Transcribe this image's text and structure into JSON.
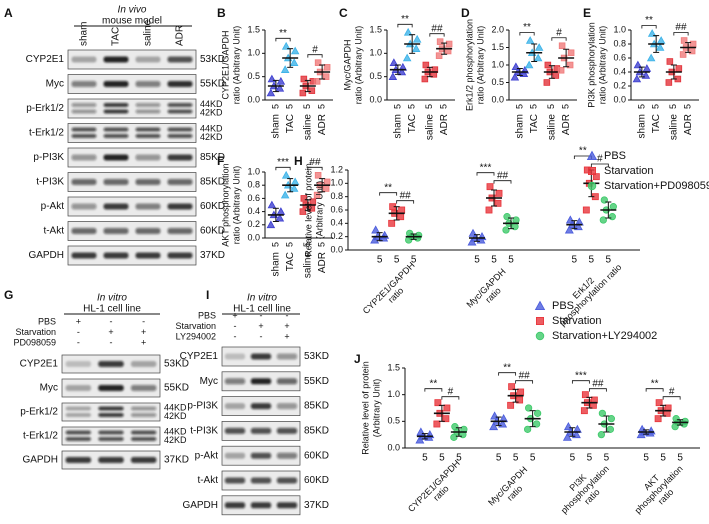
{
  "blots": [
    {
      "label": "A",
      "header": [
        "In vivo",
        "mouse model"
      ],
      "lanes": [
        "sham",
        "TAC",
        "saline",
        "ADR"
      ],
      "rows": [
        {
          "name": "CYP2E1",
          "kd": [
            "53KD"
          ]
        },
        {
          "name": "Myc",
          "kd": [
            "55KD"
          ]
        },
        {
          "name": "p-Erk1/2",
          "kd": [
            "44KD",
            "42KD"
          ]
        },
        {
          "name": "t-Erk1/2",
          "kd": [
            "44KD",
            "42KD"
          ]
        },
        {
          "name": "p-PI3K",
          "kd": [
            "85KD"
          ]
        },
        {
          "name": "t-PI3K",
          "kd": [
            "85KD"
          ]
        },
        {
          "name": "p-Akt",
          "kd": [
            "60KD"
          ]
        },
        {
          "name": "t-Akt",
          "kd": [
            "60KD"
          ]
        },
        {
          "name": "GAPDH",
          "kd": [
            "37KD"
          ]
        }
      ]
    },
    {
      "label": "G",
      "header": [
        "In vitro",
        "HL-1 cell line"
      ],
      "treatments": [
        {
          "name": "PBS",
          "signs": [
            "+",
            "-",
            "-"
          ]
        },
        {
          "name": "Starvation",
          "signs": [
            "-",
            "+",
            "+"
          ]
        },
        {
          "name": "PD098059",
          "signs": [
            "-",
            "-",
            "+"
          ]
        }
      ],
      "rows": [
        {
          "name": "CYP2E1",
          "kd": [
            "53KD"
          ]
        },
        {
          "name": "Myc",
          "kd": [
            "55KD"
          ]
        },
        {
          "name": "p-Erk1/2",
          "kd": [
            "44KD",
            "42KD"
          ]
        },
        {
          "name": "t-Erk1/2",
          "kd": [
            "44KD",
            "42KD"
          ]
        },
        {
          "name": "GAPDH",
          "kd": [
            "37KD"
          ]
        }
      ]
    },
    {
      "label": "I",
      "header": [
        "In vitro",
        "HL-1 cell line"
      ],
      "treatments": [
        {
          "name": "PBS",
          "signs": [
            "+",
            "-",
            "-"
          ]
        },
        {
          "name": "Starvation",
          "signs": [
            "-",
            "+",
            "+"
          ]
        },
        {
          "name": "LY294002",
          "signs": [
            "-",
            "-",
            "+"
          ]
        }
      ],
      "rows": [
        {
          "name": "CYP2E1",
          "kd": [
            "53KD"
          ]
        },
        {
          "name": "Myc",
          "kd": [
            "55KD"
          ]
        },
        {
          "name": "p-PI3K",
          "kd": [
            "85KD"
          ]
        },
        {
          "name": "t-PI3K",
          "kd": [
            "85KD"
          ]
        },
        {
          "name": "p-Akt",
          "kd": [
            "60KD"
          ]
        },
        {
          "name": "t-Akt",
          "kd": [
            "60KD"
          ]
        },
        {
          "name": "GAPDH",
          "kd": [
            "37KD"
          ]
        }
      ]
    }
  ],
  "chart_data": [
    {
      "type": "dot",
      "label": "B",
      "ylabel": [
        "CYP2E1/GAPDH",
        "ratio (Arbitrary Unit)"
      ],
      "categories": [
        "sham",
        "TAC",
        "saline",
        "ADR"
      ],
      "n_labels": [
        "5",
        "5",
        "5",
        "5"
      ],
      "colors": [
        "#3d3fd0",
        "#3cb3e8",
        "#e2323a",
        "#f07a7a"
      ],
      "markers": [
        "triangle",
        "triangle",
        "square",
        "square"
      ],
      "values": [
        0.3,
        0.9,
        0.3,
        0.6
      ],
      "errors": [
        0.12,
        0.2,
        0.12,
        0.15
      ],
      "points": [
        [
          0.15,
          0.25,
          0.3,
          0.4,
          0.45
        ],
        [
          0.65,
          0.8,
          0.9,
          1.05,
          1.15
        ],
        [
          0.15,
          0.2,
          0.3,
          0.4,
          0.45
        ],
        [
          0.4,
          0.5,
          0.6,
          0.7,
          0.8
        ]
      ],
      "ylim": [
        0,
        1.5
      ],
      "yticks": [
        {
          "value": 0,
          "label": "0.0"
        },
        0.5,
        {
          "value": 1,
          "label": "1.0"
        },
        1.5
      ],
      "significance": [
        "**",
        "#"
      ]
    },
    {
      "type": "dot",
      "label": "C",
      "ylabel": [
        "Myc/GAPDH",
        "ratio (Arbitrary Unit)"
      ],
      "categories": [
        "sham",
        "TAC",
        "saline",
        "ADR"
      ],
      "n_labels": [
        "5",
        "5",
        "5",
        "5"
      ],
      "colors": [
        "#3d3fd0",
        "#3cb3e8",
        "#e2323a",
        "#f07a7a"
      ],
      "markers": [
        "triangle",
        "triangle",
        "square",
        "square"
      ],
      "values": [
        0.65,
        1.2,
        0.6,
        1.1
      ],
      "errors": [
        0.1,
        0.2,
        0.1,
        0.12
      ],
      "points": [
        [
          0.5,
          0.6,
          0.65,
          0.7,
          0.8
        ],
        [
          0.9,
          1.1,
          1.2,
          1.3,
          1.45
        ],
        [
          0.45,
          0.55,
          0.6,
          0.65,
          0.75
        ],
        [
          0.95,
          1.05,
          1.1,
          1.2,
          1.25
        ]
      ],
      "ylim": [
        0,
        1.5
      ],
      "yticks": [
        {
          "value": 0,
          "label": "0.0"
        },
        0.5,
        {
          "value": 1,
          "label": "1.0"
        },
        1.5
      ],
      "significance": [
        "**",
        "##"
      ]
    },
    {
      "type": "dot",
      "label": "D",
      "ylabel": [
        "Erk1/2 phosphorylation",
        "ratio (Arbitrary Unit)"
      ],
      "categories": [
        "sham",
        "TAC",
        "saline",
        "ADR"
      ],
      "n_labels": [
        "5",
        "5",
        "5",
        "5"
      ],
      "colors": [
        "#3d3fd0",
        "#3cb3e8",
        "#e2323a",
        "#f07a7a"
      ],
      "markers": [
        "triangle",
        "triangle",
        "square",
        "square"
      ],
      "values": [
        0.8,
        1.35,
        0.8,
        1.2
      ],
      "errors": [
        0.1,
        0.25,
        0.18,
        0.25
      ],
      "points": [
        [
          0.65,
          0.75,
          0.8,
          0.85,
          0.95
        ],
        [
          1.0,
          1.2,
          1.35,
          1.5,
          1.7
        ],
        [
          0.5,
          0.7,
          0.8,
          0.9,
          1.0
        ],
        [
          0.85,
          1.0,
          1.2,
          1.35,
          1.55
        ]
      ],
      "ylim": [
        0,
        2
      ],
      "yticks": [
        {
          "value": 0,
          "label": "0.0"
        },
        0.5,
        {
          "value": 1,
          "label": "1.0"
        },
        1.5,
        {
          "value": 2,
          "label": "2.0"
        }
      ],
      "significance": [
        "**",
        "#"
      ]
    },
    {
      "type": "dot",
      "label": "E",
      "ylabel": [
        "PI3K phosphorylation",
        "ratio (Arbitrary Unit)"
      ],
      "categories": [
        "sham",
        "TAC",
        "saline",
        "ADR"
      ],
      "n_labels": [
        "5",
        "5",
        "5",
        "5"
      ],
      "colors": [
        "#3d3fd0",
        "#3cb3e8",
        "#e2323a",
        "#f07a7a"
      ],
      "markers": [
        "triangle",
        "triangle",
        "square",
        "square"
      ],
      "values": [
        0.4,
        0.8,
        0.4,
        0.75
      ],
      "errors": [
        0.07,
        0.12,
        0.1,
        0.07
      ],
      "points": [
        [
          0.3,
          0.35,
          0.4,
          0.45,
          0.5
        ],
        [
          0.6,
          0.75,
          0.8,
          0.85,
          0.95
        ],
        [
          0.25,
          0.3,
          0.4,
          0.45,
          0.55
        ],
        [
          0.65,
          0.7,
          0.75,
          0.8,
          0.85
        ]
      ],
      "ylim": [
        0,
        1
      ],
      "yticks": [
        {
          "value": 0,
          "label": "0.0"
        },
        0.2,
        0.4,
        0.6,
        0.8,
        {
          "value": 1,
          "label": "1.0"
        }
      ],
      "significance": [
        "**",
        "##"
      ]
    },
    {
      "type": "dot",
      "label": "F",
      "ylabel": [
        "AKT phosphorylation",
        "ratio (Arbitrary Unit)"
      ],
      "categories": [
        "sham",
        "TAC",
        "saline",
        "ADR"
      ],
      "n_labels": [
        "5",
        "5",
        "5",
        "5"
      ],
      "colors": [
        "#3d3fd0",
        "#3cb3e8",
        "#e2323a",
        "#f07a7a"
      ],
      "markers": [
        "triangle",
        "triangle",
        "square",
        "square"
      ],
      "values": [
        0.35,
        0.8,
        0.5,
        0.8
      ],
      "errors": [
        0.1,
        0.1,
        0.08,
        0.1
      ],
      "points": [
        [
          0.2,
          0.3,
          0.35,
          0.4,
          0.5
        ],
        [
          0.65,
          0.75,
          0.8,
          0.85,
          0.95
        ],
        [
          0.4,
          0.45,
          0.5,
          0.55,
          0.6
        ],
        [
          0.65,
          0.75,
          0.8,
          0.85,
          0.95
        ]
      ],
      "ylim": [
        0,
        1
      ],
      "yticks": [
        {
          "value": 0,
          "label": "0.0"
        },
        0.2,
        0.4,
        0.6,
        0.8,
        {
          "value": 1,
          "label": "1.0"
        }
      ],
      "significance": [
        "***",
        "##"
      ]
    },
    {
      "type": "grouped_dot",
      "label": "H",
      "ylabel": [
        "Relative level of protein",
        "(Arbitrary Unit)"
      ],
      "categories": [
        [
          "CYP2E1/GAPDH",
          "ratio"
        ],
        [
          "Myc/GAPDH",
          "ratio"
        ],
        [
          "Erk1/2",
          "phosphorylation ratio"
        ]
      ],
      "n_labels": [
        [
          "5",
          "5",
          "5"
        ],
        [
          "5",
          "5",
          "5"
        ],
        [
          "5",
          "5",
          "5"
        ]
      ],
      "series": [
        {
          "name": "PBS",
          "color": "#4a5bdc",
          "marker": "triangle",
          "values": [
            0.2,
            0.18,
            0.38
          ],
          "errors": [
            0.06,
            0.05,
            0.06
          ],
          "points": [
            [
              0.15,
              0.18,
              0.2,
              0.22,
              0.3
            ],
            [
              0.12,
              0.15,
              0.18,
              0.2,
              0.25
            ],
            [
              0.3,
              0.35,
              0.38,
              0.42,
              0.45
            ]
          ]
        },
        {
          "name": "Starvation",
          "color": "#e8353b",
          "marker": "square",
          "values": [
            0.55,
            0.78,
            1.0
          ],
          "errors": [
            0.1,
            0.12,
            0.2
          ],
          "points": [
            [
              0.4,
              0.5,
              0.55,
              0.6,
              0.65
            ],
            [
              0.6,
              0.7,
              0.78,
              0.85,
              0.95
            ],
            [
              0.6,
              0.8,
              1.0,
              1.1,
              1.2
            ]
          ]
        },
        {
          "name": "Starvation+PD098059",
          "color": "#3ec96a",
          "marker": "circle",
          "values": [
            0.2,
            0.4,
            0.6
          ],
          "errors": [
            0.04,
            0.08,
            0.12
          ],
          "points": [
            [
              0.15,
              0.18,
              0.2,
              0.22,
              0.25
            ],
            [
              0.3,
              0.35,
              0.4,
              0.45,
              0.5
            ],
            [
              0.45,
              0.5,
              0.6,
              0.65,
              0.75
            ]
          ]
        }
      ],
      "ylim": [
        0,
        1.2
      ],
      "yticks": [
        {
          "value": 0,
          "label": "0.0"
        },
        0.2,
        0.4,
        0.6,
        0.8,
        {
          "value": 1,
          "label": "1.0"
        },
        1.2
      ],
      "significance": [
        [
          "**",
          "##"
        ],
        [
          "***",
          "##"
        ],
        [
          "**",
          "#"
        ]
      ],
      "legend": "upper right"
    },
    {
      "type": "grouped_dot",
      "label": "J",
      "ylabel": [
        "Relative level of protein",
        "(Arbitrary Unit)"
      ],
      "categories": [
        [
          "CYP2E1/GAPDH",
          "ratio"
        ],
        [
          "Myc/GAPDH",
          "ratio"
        ],
        [
          "PI3K",
          "phosphorylation",
          "ratio"
        ],
        [
          "AKT",
          "phosphorylation",
          "ratio"
        ]
      ],
      "n_labels": [
        [
          "5",
          "5",
          "5"
        ],
        [
          "5",
          "5",
          "5"
        ],
        [
          "5",
          "5",
          "5"
        ],
        [
          "5",
          "5",
          "5"
        ]
      ],
      "series": [
        {
          "name": "PBS",
          "color": "#4a5bdc",
          "marker": "triangle",
          "values": [
            0.22,
            0.5,
            0.3,
            0.3
          ],
          "errors": [
            0.05,
            0.08,
            0.08,
            0.04
          ],
          "points": [
            [
              0.15,
              0.2,
              0.22,
              0.25,
              0.3
            ],
            [
              0.4,
              0.45,
              0.5,
              0.55,
              0.6
            ],
            [
              0.2,
              0.25,
              0.3,
              0.35,
              0.4
            ],
            [
              0.25,
              0.28,
              0.3,
              0.32,
              0.35
            ]
          ]
        },
        {
          "name": "Starvation",
          "color": "#e8353b",
          "marker": "square",
          "values": [
            0.65,
            0.98,
            0.85,
            0.7
          ],
          "errors": [
            0.15,
            0.12,
            0.1,
            0.1
          ],
          "points": [
            [
              0.45,
              0.55,
              0.65,
              0.75,
              0.85
            ],
            [
              0.8,
              0.9,
              0.98,
              1.05,
              1.15
            ],
            [
              0.7,
              0.8,
              0.85,
              0.9,
              1.0
            ],
            [
              0.55,
              0.65,
              0.7,
              0.75,
              0.85
            ]
          ]
        },
        {
          "name": "Starvation+LY294002",
          "color": "#3ec96a",
          "marker": "circle",
          "values": [
            0.3,
            0.55,
            0.45,
            0.48
          ],
          "errors": [
            0.08,
            0.15,
            0.15,
            0.05
          ],
          "points": [
            [
              0.2,
              0.25,
              0.3,
              0.35,
              0.4
            ],
            [
              0.35,
              0.45,
              0.55,
              0.65,
              0.75
            ],
            [
              0.25,
              0.35,
              0.45,
              0.55,
              0.65
            ],
            [
              0.4,
              0.45,
              0.48,
              0.5,
              0.55
            ]
          ]
        }
      ],
      "ylim": [
        0,
        1.5
      ],
      "yticks": [
        {
          "value": 0,
          "label": "0.0"
        },
        0.5,
        {
          "value": 1,
          "label": "1.0"
        },
        1.5
      ],
      "significance": [
        [
          "**",
          "#"
        ],
        [
          "**",
          "##"
        ],
        [
          "***",
          "##"
        ],
        [
          "**",
          "#"
        ]
      ],
      "legend": "upper right"
    }
  ]
}
